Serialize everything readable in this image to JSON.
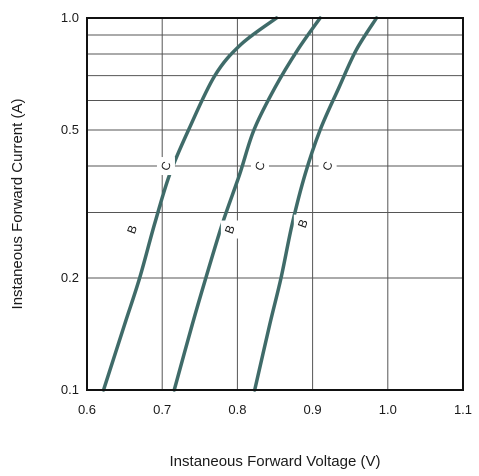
{
  "chart_data": {
    "type": "line",
    "title": "",
    "xlabel": "Instaneous Forward Voltage (V)",
    "ylabel": "Instaneous Forward Current  (A)",
    "xlim": [
      0.6,
      1.1
    ],
    "ylim": [
      0.1,
      1.0
    ],
    "yscale": "log",
    "grid": true,
    "x_ticks": [
      "0.6",
      "0.7",
      "0.8",
      "0.9",
      "1.0",
      "1.1"
    ],
    "y_ticks": [
      {
        "value": 0.1,
        "label": "0.1"
      },
      {
        "value": 0.2,
        "label": "0.2"
      },
      {
        "value": 0.5,
        "label": "0.5"
      },
      {
        "value": 1.0,
        "label": "1.0"
      }
    ],
    "line_color": "#3f6b69",
    "series": [
      {
        "points": [
          [
            0.622,
            0.1
          ],
          [
            0.65,
            0.15
          ],
          [
            0.67,
            0.2
          ],
          [
            0.69,
            0.28
          ],
          [
            0.71,
            0.38
          ],
          [
            0.735,
            0.5
          ],
          [
            0.77,
            0.7
          ],
          [
            0.805,
            0.85
          ],
          [
            0.852,
            1.0
          ]
        ]
      },
      {
        "points": [
          [
            0.716,
            0.1
          ],
          [
            0.74,
            0.15
          ],
          [
            0.758,
            0.2
          ],
          [
            0.78,
            0.28
          ],
          [
            0.803,
            0.38
          ],
          [
            0.822,
            0.5
          ],
          [
            0.85,
            0.65
          ],
          [
            0.88,
            0.82
          ],
          [
            0.91,
            1.0
          ]
        ]
      },
      {
        "points": [
          [
            0.823,
            0.1
          ],
          [
            0.843,
            0.15
          ],
          [
            0.858,
            0.2
          ],
          [
            0.873,
            0.28
          ],
          [
            0.89,
            0.38
          ],
          [
            0.91,
            0.5
          ],
          [
            0.935,
            0.65
          ],
          [
            0.958,
            0.82
          ],
          [
            0.985,
            1.0
          ]
        ]
      }
    ],
    "annotations": [
      {
        "text": "C",
        "x": 0.705,
        "y": 0.4
      },
      {
        "text": "C",
        "x": 0.83,
        "y": 0.4
      },
      {
        "text": "C",
        "x": 0.92,
        "y": 0.4
      },
      {
        "text": "B",
        "x": 0.66,
        "y": 0.27
      },
      {
        "text": "B",
        "x": 0.79,
        "y": 0.27
      },
      {
        "text": "B",
        "x": 0.887,
        "y": 0.28
      }
    ]
  }
}
